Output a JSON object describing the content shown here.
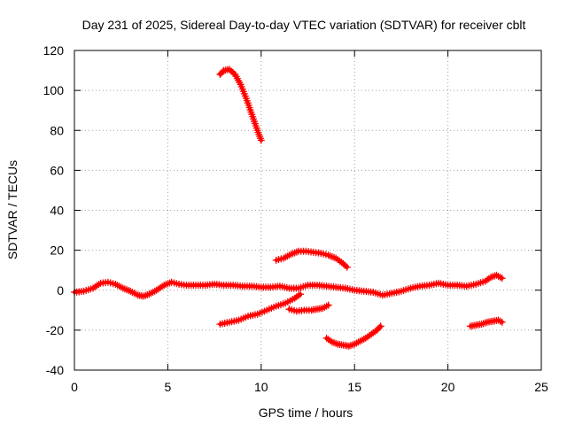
{
  "chart_data": {
    "type": "scatter",
    "title": "Day 231 of 2025, Sidereal Day-to-day VTEC variation (SDTVAR) for receiver cblt",
    "xlabel": "GPS time / hours",
    "ylabel": "SDTVAR / TECUs",
    "xlim": [
      0,
      25
    ],
    "ylim": [
      -40,
      120
    ],
    "xticks": [
      0,
      5,
      10,
      15,
      20,
      25
    ],
    "yticks": [
      -40,
      -20,
      0,
      20,
      40,
      60,
      80,
      100,
      120
    ],
    "grid": true,
    "marker": "plus",
    "color": "#ff0000",
    "series": [
      {
        "name": "track-main-zero",
        "x": [
          0,
          0.5,
          1.0,
          1.4,
          1.8,
          2.2,
          2.6,
          3.0,
          3.4,
          3.7,
          4.0,
          4.4,
          4.8,
          5.2,
          5.6,
          6.0,
          6.5,
          7.0,
          7.5,
          8.0,
          8.5,
          9.0,
          9.5,
          10.0,
          10.5,
          11.0,
          11.5,
          12.0,
          12.5,
          13.0,
          13.5,
          14.0,
          14.5,
          15.0,
          15.5,
          16.0,
          16.5,
          17.0,
          17.5,
          18.0,
          18.5,
          19.0,
          19.5,
          20.0,
          20.5,
          21.0,
          21.5,
          22.0,
          22.3,
          22.6,
          22.9
        ],
        "y": [
          -1,
          -0.5,
          1,
          3.5,
          4,
          3,
          1,
          -0.5,
          -2.5,
          -3,
          -2,
          0,
          2.5,
          4,
          3,
          2.5,
          2.5,
          2.5,
          3,
          2.5,
          2.5,
          2,
          2,
          1.5,
          1.5,
          2,
          1,
          1,
          2.5,
          2.5,
          2,
          1.5,
          1,
          0,
          -0.5,
          -1,
          -2.5,
          -1.5,
          -0.5,
          1,
          2,
          2.5,
          3.5,
          2.5,
          2.5,
          2,
          3,
          4.5,
          6.5,
          7.5,
          6
        ]
      },
      {
        "name": "track-arc-high",
        "x": [
          7.8,
          8.0,
          8.3,
          8.6,
          8.9,
          9.2,
          9.5,
          9.8,
          10.0
        ],
        "y": [
          108,
          110,
          110.5,
          108,
          103,
          96,
          88,
          80,
          75
        ]
      },
      {
        "name": "track-arc-20",
        "x": [
          10.8,
          11.2,
          11.6,
          12.0,
          12.4,
          12.8,
          13.2,
          13.6,
          14.0,
          14.3,
          14.6
        ],
        "y": [
          15,
          16,
          18,
          19.5,
          19.5,
          19,
          18.5,
          17.5,
          16,
          14,
          11.5
        ]
      },
      {
        "name": "track-rising-neg",
        "x": [
          7.8,
          8.3,
          8.8,
          9.3,
          9.8,
          10.3,
          10.8,
          11.3,
          11.8,
          12.1
        ],
        "y": [
          -17,
          -16,
          -15,
          -13,
          -12,
          -10,
          -8,
          -6.5,
          -4,
          -2
        ]
      },
      {
        "name": "track-neg-10",
        "x": [
          11.5,
          11.9,
          12.3,
          12.7,
          13.0,
          13.3,
          13.6
        ],
        "y": [
          -9.5,
          -10.5,
          -10,
          -10,
          -9.5,
          -9,
          -7.5
        ]
      },
      {
        "name": "track-dip-28",
        "x": [
          13.5,
          13.8,
          14.1,
          14.4,
          14.7,
          15.0,
          15.3,
          15.6,
          15.9,
          16.2,
          16.4
        ],
        "y": [
          -24,
          -26,
          -27,
          -27.5,
          -28,
          -27,
          -25.5,
          -24,
          -22,
          -20,
          -18
        ]
      },
      {
        "name": "track-neg-late",
        "x": [
          21.2,
          21.5,
          21.8,
          22.1,
          22.4,
          22.7,
          22.9
        ],
        "y": [
          -18,
          -17.5,
          -17,
          -16,
          -15.5,
          -15,
          -16
        ]
      }
    ]
  }
}
